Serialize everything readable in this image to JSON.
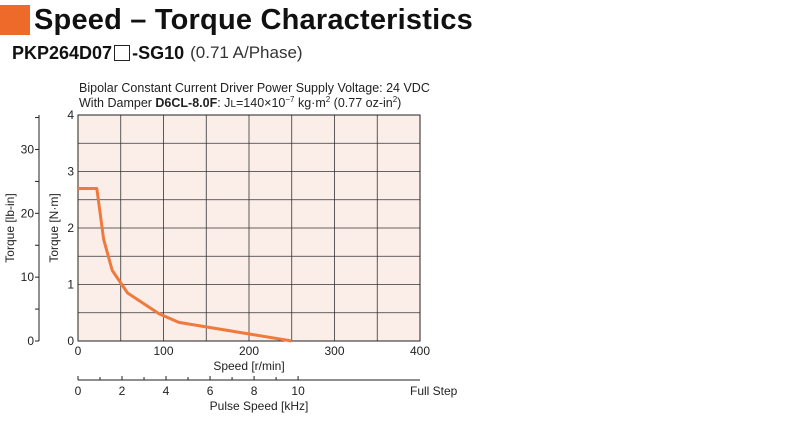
{
  "header": {
    "title": "Speed – Torque Characteristics",
    "model_prefix": "PKP264D07",
    "model_suffix": "-SG10",
    "phase": "(0.71 A/Phase)"
  },
  "conditions": {
    "line1": "Bipolar Constant Current Driver  Power Supply Voltage: 24 VDC",
    "line2_prefix": "With Damper ",
    "damper_model": "D6CL-8.0F",
    "inertia_label": ": J",
    "inertia_sub": "L",
    "inertia_value": "=140×10",
    "inertia_exp": "−7",
    "inertia_unit": " kg·m",
    "inertia_unit_exp": "2",
    "inertia_oz": " (0.77 oz-in",
    "inertia_oz_exp": "2",
    "inertia_close": ")"
  },
  "colors": {
    "accent": "#ee6a2a",
    "plot_bg": "#fbeee8",
    "curve": "#f07a3e"
  },
  "chart_data": {
    "type": "line",
    "xlabel": "Speed [r/min]",
    "ylabel": "Torque [N·m]",
    "xlim": [
      0,
      400
    ],
    "ylim": [
      0,
      4
    ],
    "x_ticks": [
      "0",
      "100",
      "200",
      "300",
      "400"
    ],
    "y_ticks": [
      "0",
      "1",
      "2",
      "3",
      "4"
    ],
    "grid": true,
    "secondary_y": {
      "label": "Torque [lb-in]",
      "ticks": [
        "0",
        "10",
        "20",
        "30"
      ]
    },
    "secondary_x": {
      "label": "Pulse Speed [kHz]",
      "ticks": [
        "0",
        "2",
        "4",
        "6",
        "8",
        "10"
      ],
      "note": "Full Step"
    },
    "series": [
      {
        "x": [
          0,
          22,
          30,
          40,
          58,
          95,
          118,
          250
        ],
        "y": [
          2.7,
          2.7,
          1.8,
          1.25,
          0.85,
          0.48,
          0.33,
          0.0
        ]
      }
    ]
  }
}
